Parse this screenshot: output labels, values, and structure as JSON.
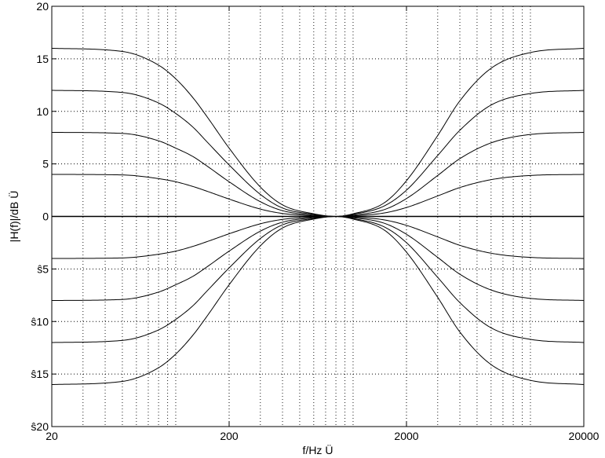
{
  "chart_data": {
    "type": "line",
    "title": "",
    "xlabel": "f/Hz Ü",
    "ylabel": "|H(f)|/dB Ü",
    "x_scale": "log",
    "xlim": [
      20,
      20000
    ],
    "ylim": [
      -20,
      20
    ],
    "x_ticks": [
      20,
      200,
      2000,
      20000
    ],
    "x_tick_labels": [
      "20",
      "200",
      "2000",
      "20000"
    ],
    "y_ticks": [
      20,
      15,
      10,
      5,
      0,
      -5,
      -10,
      -15,
      -20
    ],
    "y_tick_labels": [
      "20",
      "15",
      "10",
      "5",
      "0",
      "ŝ5",
      "ŝ10",
      "ŝ15",
      "ŝ20"
    ],
    "grid": true,
    "legend": "none",
    "line_color": "#000000",
    "x": [
      20,
      50,
      80,
      100,
      125,
      150,
      200,
      300,
      400,
      600,
      800,
      1000,
      1500,
      2000,
      3000,
      4000,
      6000,
      10000,
      20000
    ],
    "series": [
      {
        "values": [
          16,
          15.7,
          14.4,
          13.1,
          11.3,
          9.5,
          6.5,
          2.8,
          1.1,
          0.25,
          0,
          0.25,
          1.3,
          3.4,
          7.7,
          11.0,
          14.1,
          15.6,
          16
        ]
      },
      {
        "values": [
          12,
          11.8,
          10.8,
          9.8,
          8.5,
          7.1,
          4.9,
          2.1,
          0.8,
          0.2,
          0,
          0.2,
          1.0,
          2.5,
          5.8,
          8.2,
          10.6,
          11.7,
          12
        ]
      },
      {
        "values": [
          8,
          7.9,
          7.2,
          6.5,
          5.7,
          4.8,
          3.3,
          1.4,
          0.55,
          0.12,
          0,
          0.12,
          0.65,
          1.7,
          3.9,
          5.5,
          7.0,
          7.8,
          8
        ]
      },
      {
        "values": [
          4,
          3.95,
          3.6,
          3.3,
          2.85,
          2.4,
          1.65,
          0.7,
          0.28,
          0.06,
          0,
          0.06,
          0.33,
          0.85,
          1.95,
          2.75,
          3.5,
          3.9,
          4
        ]
      },
      {
        "values": [
          0,
          0,
          0,
          0,
          0,
          0,
          0,
          0,
          0,
          0,
          0,
          0,
          0,
          0,
          0,
          0,
          0,
          0,
          0
        ]
      },
      {
        "values": [
          -4,
          -3.95,
          -3.6,
          -3.3,
          -2.85,
          -2.4,
          -1.65,
          -0.7,
          -0.28,
          -0.06,
          0,
          -0.06,
          -0.33,
          -0.85,
          -1.95,
          -2.75,
          -3.5,
          -3.9,
          -4
        ]
      },
      {
        "values": [
          -8,
          -7.9,
          -7.2,
          -6.5,
          -5.7,
          -4.8,
          -3.3,
          -1.4,
          -0.55,
          -0.12,
          0,
          -0.12,
          -0.65,
          -1.7,
          -3.9,
          -5.5,
          -7.0,
          -7.8,
          -8
        ]
      },
      {
        "values": [
          -12,
          -11.8,
          -10.8,
          -9.8,
          -8.5,
          -7.1,
          -4.9,
          -2.1,
          -0.8,
          -0.2,
          0,
          -0.2,
          -1.0,
          -2.5,
          -5.8,
          -8.2,
          -10.6,
          -11.7,
          -12
        ]
      },
      {
        "values": [
          -16,
          -15.7,
          -14.4,
          -13.1,
          -11.3,
          -9.5,
          -6.5,
          -2.8,
          -1.1,
          -0.25,
          0,
          -0.25,
          -1.3,
          -3.4,
          -7.7,
          -11.0,
          -14.1,
          -15.6,
          -16
        ]
      }
    ]
  }
}
